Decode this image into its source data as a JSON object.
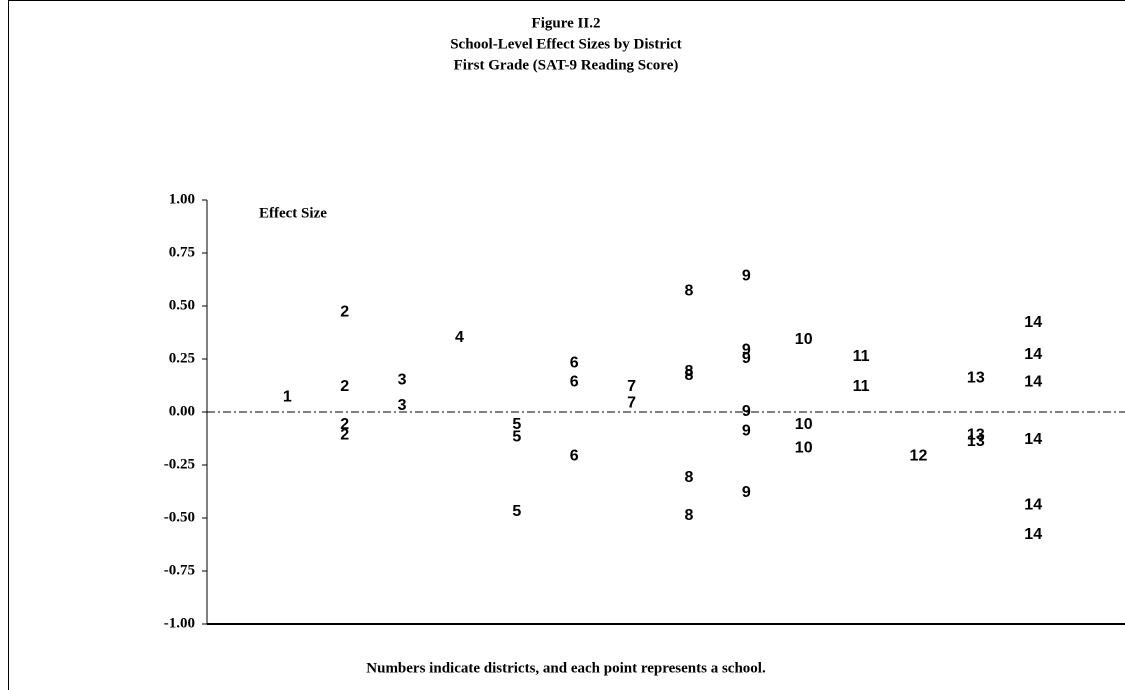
{
  "chart_data": {
    "type": "scatter",
    "title": "Figure II.2",
    "subtitle": [
      "School-Level Effect Sizes by District",
      "First Grade (SAT-9 Reading Score)"
    ],
    "y_label": "Effect Size",
    "note": "Numbers indicate districts, and each point represents a school.",
    "x": [
      1,
      2,
      2,
      2,
      2,
      3,
      3,
      4,
      5,
      5,
      5,
      6,
      6,
      6,
      7,
      7,
      8,
      8,
      8,
      8,
      8,
      9,
      9,
      9,
      9,
      9,
      9,
      10,
      10,
      10,
      11,
      11,
      12,
      13,
      13,
      13,
      14,
      14,
      14,
      14,
      14,
      14
    ],
    "values": [
      0.07,
      0.47,
      0.12,
      -0.06,
      -0.11,
      0.15,
      0.03,
      0.35,
      -0.06,
      -0.12,
      -0.47,
      0.23,
      0.14,
      -0.21,
      0.12,
      0.04,
      0.57,
      0.19,
      0.17,
      -0.31,
      -0.49,
      0.64,
      0.29,
      0.25,
      0.0,
      -0.09,
      -0.38,
      0.34,
      -0.06,
      -0.17,
      0.26,
      0.12,
      -0.21,
      0.16,
      -0.11,
      -0.14,
      0.42,
      0.27,
      0.14,
      -0.13,
      -0.44,
      -0.58
    ],
    "xlim": [
      -0.4,
      15.6
    ],
    "ylim": [
      -1,
      1
    ],
    "yticks": [
      {
        "value": -1,
        "label": "-1.00"
      },
      {
        "value": -0.75,
        "label": "-0.75"
      },
      {
        "value": -0.5,
        "label": "-0.50"
      },
      {
        "value": -0.25,
        "label": "-0.25"
      },
      {
        "value": 0,
        "label": "0.00"
      },
      {
        "value": 0.25,
        "label": "0.25"
      },
      {
        "value": 0.5,
        "label": "0.50"
      },
      {
        "value": 0.75,
        "label": "0.75"
      },
      {
        "value": 1,
        "label": "1.00"
      }
    ],
    "reference_line": 0,
    "color": "#000000"
  }
}
